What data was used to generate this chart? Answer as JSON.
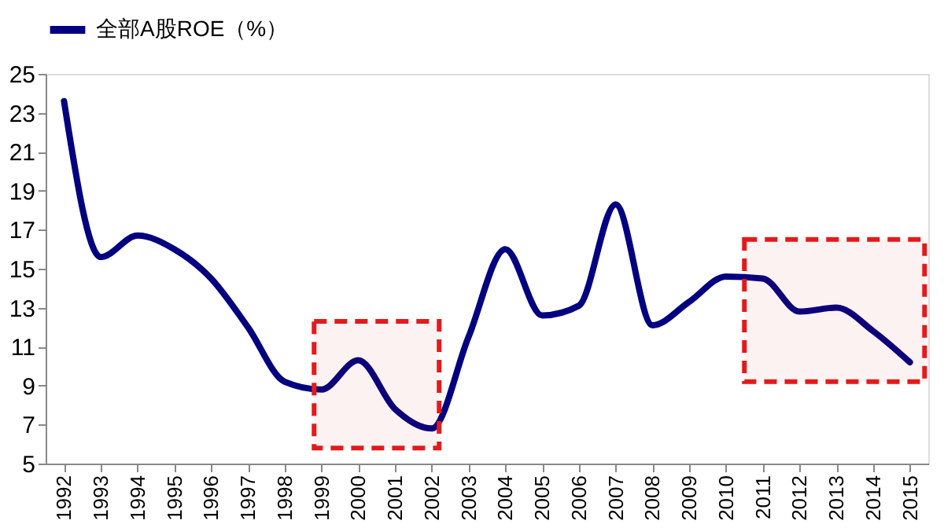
{
  "chart_data": {
    "type": "line",
    "x": [
      1992,
      1993,
      1994,
      1995,
      1996,
      1997,
      1998,
      1999,
      2000,
      2001,
      2002,
      2003,
      2004,
      2005,
      2006,
      2007,
      2008,
      2009,
      2010,
      2011,
      2012,
      2013,
      2014,
      2015
    ],
    "series": [
      {
        "name": "全部A股ROE（%）",
        "color": "#000080",
        "values": [
          23.6,
          15.6,
          16.7,
          16.0,
          14.5,
          12.0,
          9.2,
          8.8,
          10.3,
          7.8,
          6.8,
          11.5,
          16.0,
          12.6,
          13.1,
          18.3,
          12.1,
          13.3,
          14.6,
          14.5,
          12.8,
          13.0,
          11.8,
          10.2
        ]
      }
    ],
    "xlim": [
      1991.5,
      2015.5
    ],
    "xticks": [
      1992,
      1993,
      1994,
      1995,
      1996,
      1997,
      1998,
      1999,
      2000,
      2001,
      2002,
      2003,
      2004,
      2005,
      2006,
      2007,
      2008,
      2009,
      2010,
      2011,
      2012,
      2013,
      2014,
      2015
    ],
    "ylim": [
      5,
      25
    ],
    "yticks": [
      5,
      7,
      9,
      11,
      13,
      15,
      17,
      19,
      21,
      23,
      25
    ],
    "bands": [
      {
        "axis": "x",
        "from": 1998.8,
        "to": 2002.2,
        "color": "#e31a1c"
      },
      {
        "axis": "x",
        "from": 2010.5,
        "to": 2015.4,
        "color": "#e31a1c"
      }
    ],
    "grid": false,
    "legend": "top",
    "marker": "none",
    "line_style": "solid"
  }
}
